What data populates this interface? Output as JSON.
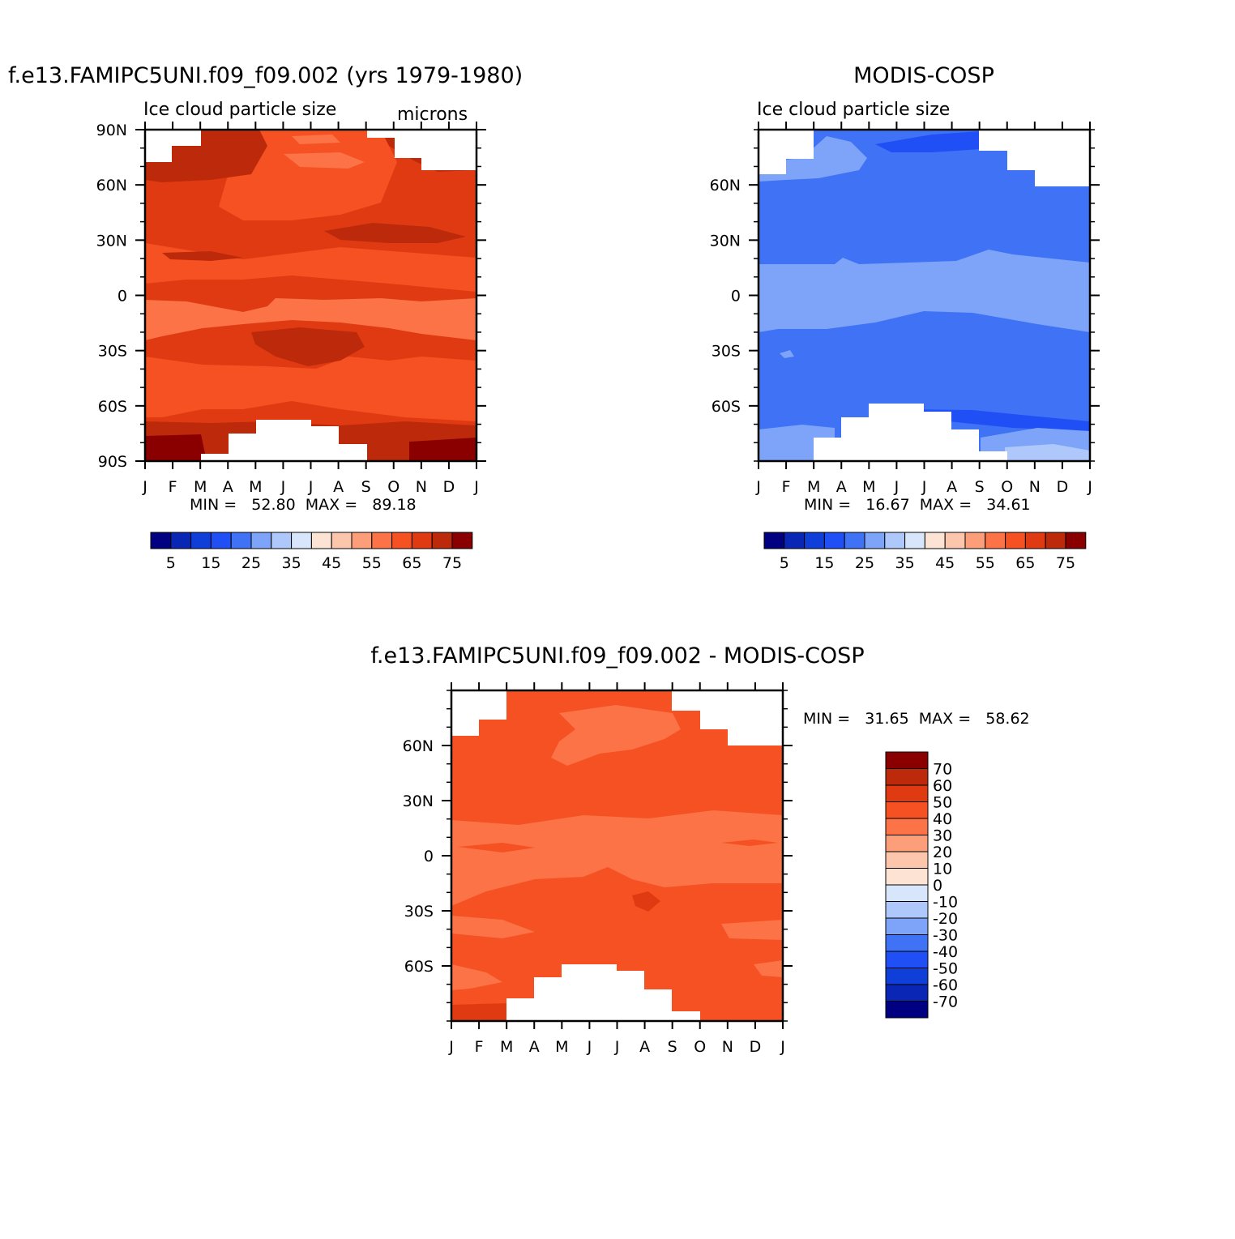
{
  "chart_data": [
    {
      "type": "heatmap",
      "title": "f.e13.FAMIPC5UNI.f09_f09.002 (yrs 1979-1980)",
      "subtitle_left": "Ice cloud particle size",
      "subtitle_right": "microns",
      "x_ticks": [
        "J",
        "F",
        "M",
        "A",
        "M",
        "J",
        "J",
        "A",
        "S",
        "O",
        "N",
        "D",
        "J"
      ],
      "y_ticks": [
        "90N",
        "60N",
        "30N",
        "0",
        "30S",
        "60S",
        "90S"
      ],
      "y_tick_values": [
        90,
        60,
        30,
        0,
        -30,
        -60,
        -90
      ],
      "stats": "MIN =   52.80  MAX =   89.18",
      "min": 52.8,
      "max": 89.18,
      "colorbar_labels": [
        "5",
        "15",
        "25",
        "35",
        "45",
        "55",
        "65",
        "75"
      ],
      "data_coverage_lat": [
        -80,
        85
      ]
    },
    {
      "type": "heatmap",
      "title": "MODIS-COSP",
      "subtitle_left": "Ice cloud particle size",
      "x_ticks": [
        "J",
        "F",
        "M",
        "A",
        "M",
        "J",
        "J",
        "A",
        "S",
        "O",
        "N",
        "D",
        "J"
      ],
      "y_ticks": [
        "60N",
        "30N",
        "0",
        "30S",
        "60S"
      ],
      "y_tick_values": [
        60,
        30,
        0,
        -30,
        -60
      ],
      "stats": "MIN =   16.67  MAX =   34.61",
      "min": 16.67,
      "max": 34.61,
      "colorbar_labels": [
        "5",
        "15",
        "25",
        "35",
        "45",
        "55",
        "65",
        "75"
      ]
    },
    {
      "type": "heatmap",
      "title": "f.e13.FAMIPC5UNI.f09_f09.002 - MODIS-COSP",
      "x_ticks": [
        "J",
        "F",
        "M",
        "A",
        "M",
        "J",
        "J",
        "A",
        "S",
        "O",
        "N",
        "D",
        "J"
      ],
      "y_ticks": [
        "60N",
        "30N",
        "0",
        "30S",
        "60S"
      ],
      "y_tick_values": [
        60,
        30,
        0,
        -30,
        -60
      ],
      "stats": "MIN =   31.65  MAX =   58.62",
      "min": 31.65,
      "max": 58.62,
      "colorbar_labels": [
        "70",
        "60",
        "50",
        "40",
        "30",
        "20",
        "10",
        "0",
        "-10",
        "-20",
        "-30",
        "-40",
        "-50",
        "-60",
        "-70"
      ]
    }
  ],
  "colors": {
    "abs_palette": [
      "#000080",
      "#0a26b4",
      "#0f3ed9",
      "#1f4ff5",
      "#3f72f5",
      "#7da4f8",
      "#aec8fb",
      "#d7e6fb",
      "#fde3d3",
      "#fcc6ad",
      "#fc9e7a",
      "#fb7346",
      "#f55122",
      "#e03a12",
      "#bd2a0b",
      "#8a0000"
    ],
    "diff_palette": [
      "#8a0000",
      "#bd2a0b",
      "#e03a12",
      "#f55122",
      "#fb7346",
      "#fc9e7a",
      "#fcc6ad",
      "#fde3d3",
      "#d7e6fb",
      "#aec8fb",
      "#7da4f8",
      "#3f72f5",
      "#1f4ff5",
      "#0f3ed9",
      "#0a26b4",
      "#000080"
    ]
  }
}
